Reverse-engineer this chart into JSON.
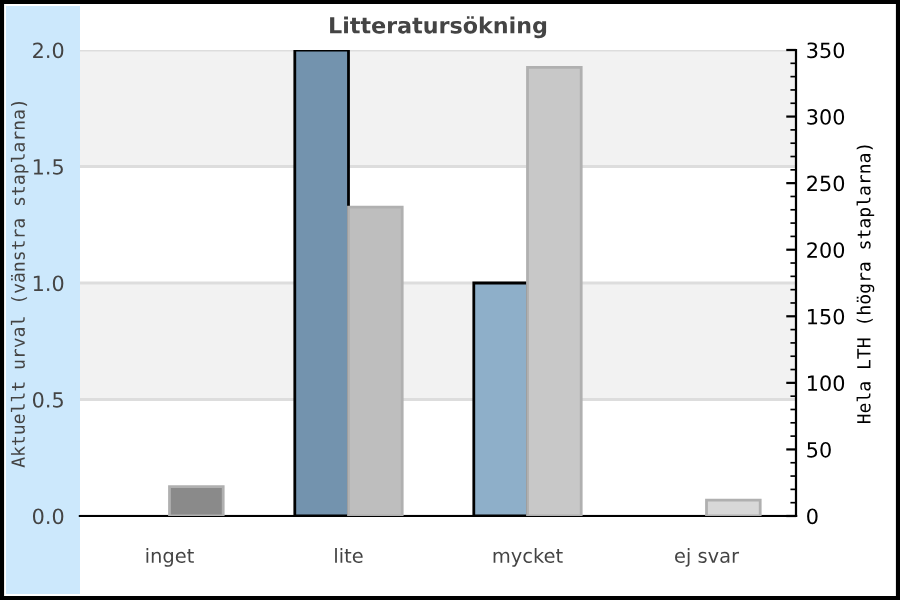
{
  "chart_data": {
    "type": "bar",
    "title": "Litteratursökning",
    "ylabel": "Aktuellt urval (vänstra staplarna)",
    "y2label": "Hela LTH (högra staplarna)",
    "categories": [
      "inget",
      "lite",
      "mycket",
      "ej svar"
    ],
    "series": [
      {
        "values": [
          0,
          2,
          1,
          0
        ],
        "colors": [
          "#7393ae",
          "#7393ae",
          "#8eafc9",
          "#8eafc9"
        ]
      },
      {
        "values": [
          22,
          232,
          337,
          12
        ],
        "axis": "y2",
        "colors": [
          "#8a8a8a",
          "#bebebe",
          "#c8c8c8",
          "#d8d8d8"
        ]
      }
    ],
    "ylim": [
      0,
      2
    ],
    "yticks": [
      {
        "value": 0,
        "label": "0.0"
      },
      0.5,
      {
        "value": 1,
        "label": "1.0"
      },
      1.5,
      {
        "value": 2,
        "label": "2.0"
      }
    ],
    "y2lim": [
      0,
      350
    ],
    "y2ticks": [
      0,
      50,
      100,
      150,
      200,
      250,
      300,
      350
    ],
    "bands": [
      {
        "axis": "y",
        "from": 0.5,
        "to": 1.0,
        "color": "#f2f2f2"
      },
      {
        "axis": "y",
        "from": 1.5,
        "to": 2.0,
        "color": "#f2f2f2"
      }
    ],
    "grid": "y"
  }
}
